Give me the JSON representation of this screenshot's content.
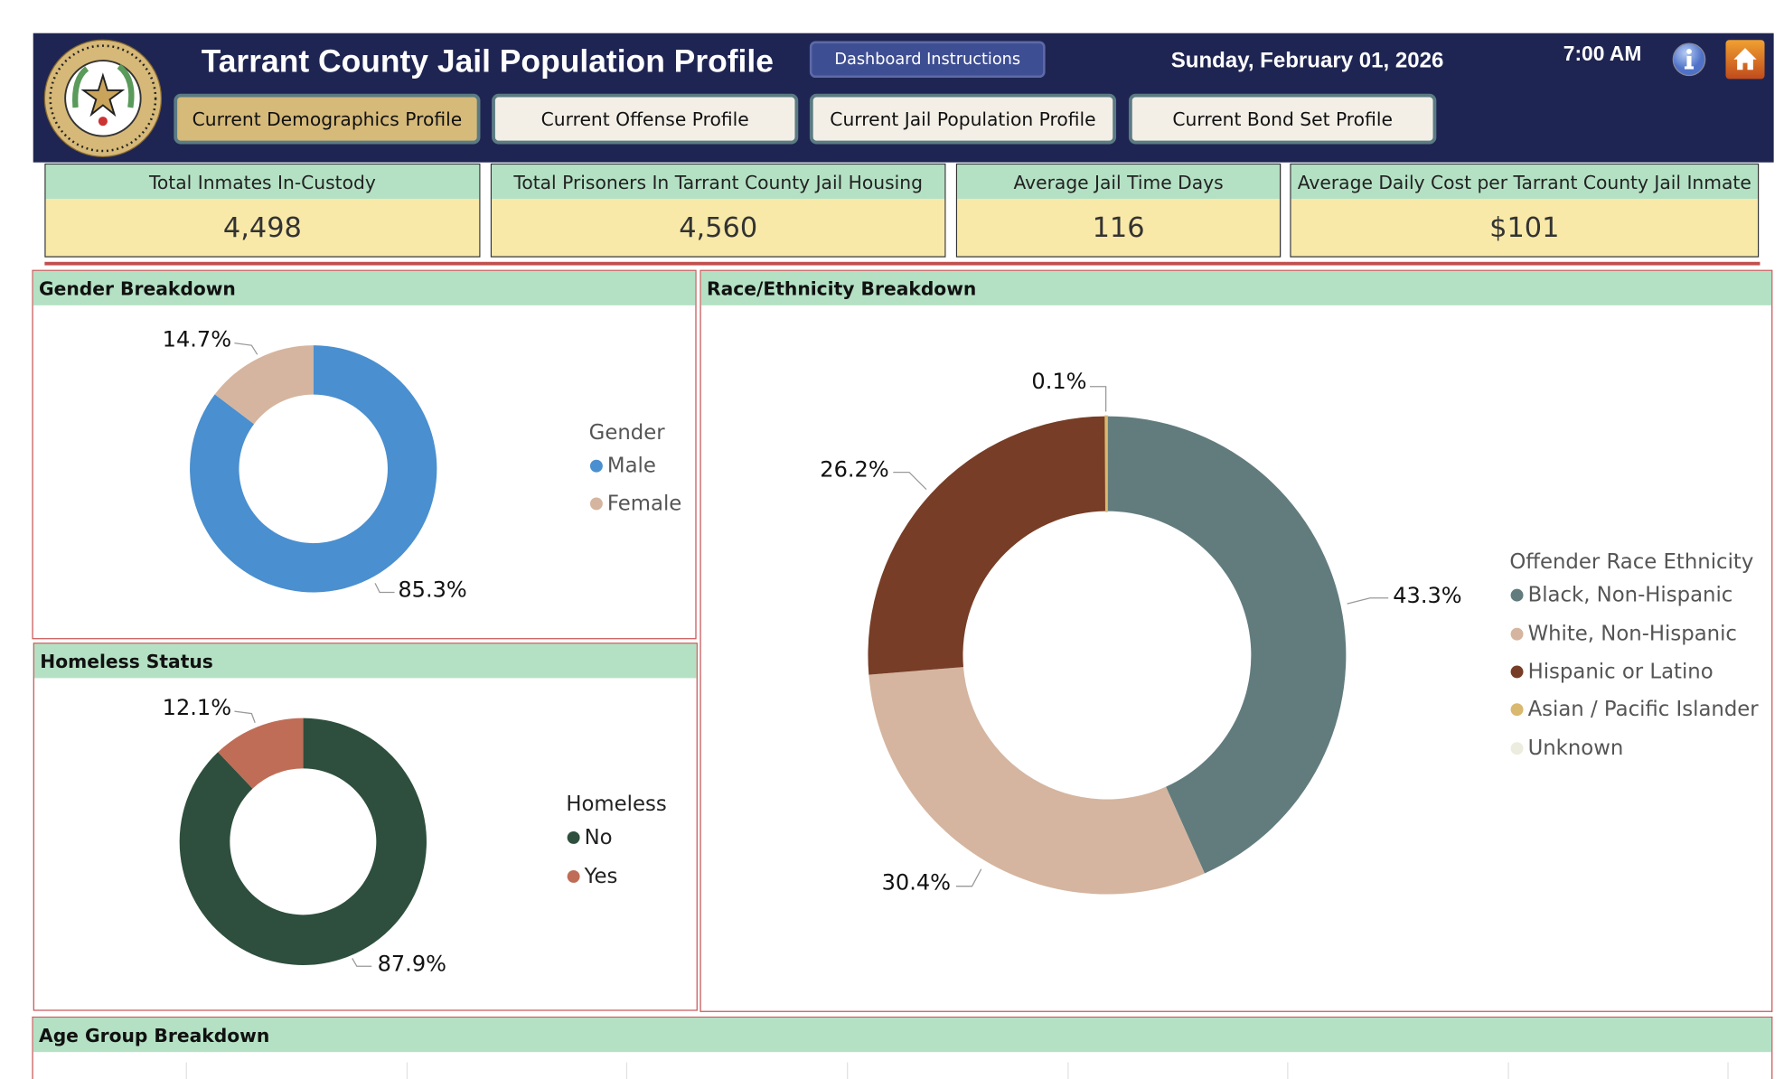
{
  "header": {
    "title": "Tarrant County Jail Population Profile",
    "instructions_button": "Dashboard Instructions",
    "date": "Sunday, February 01, 2026",
    "time": "7:00 AM",
    "seal_text": "TARRANT COUNTY, TEXAS",
    "icons": [
      "info-icon",
      "home-icon"
    ]
  },
  "tabs": [
    {
      "label": "Current Demographics Profile",
      "active": true
    },
    {
      "label": "Current Offense Profile",
      "active": false
    },
    {
      "label": "Current Jail Population Profile",
      "active": false
    },
    {
      "label": "Current Bond Set Profile",
      "active": false
    }
  ],
  "kpis": [
    {
      "label": "Total Inmates In-Custody",
      "value": "4,498"
    },
    {
      "label": "Total Prisoners In Tarrant County Jail Housing",
      "value": "4,560"
    },
    {
      "label": "Average Jail Time Days",
      "value": "116"
    },
    {
      "label": "Average Daily Cost per Tarrant County Jail Inmate",
      "value": "$101"
    }
  ],
  "panels": {
    "gender": "Gender Breakdown",
    "homeless": "Homeless Status",
    "race": "Race/Ethnicity Breakdown",
    "age": "Age Group Breakdown"
  },
  "chart_data": [
    {
      "type": "pie",
      "title": "Gender Breakdown",
      "legend_title": "Gender",
      "legend_position": "right",
      "categories": [
        "Male",
        "Female"
      ],
      "values": [
        85.3,
        14.7
      ],
      "labels": [
        "85.3%",
        "14.7%"
      ],
      "colors": [
        "#4a8fcf",
        "#d5b59f"
      ]
    },
    {
      "type": "pie",
      "title": "Homeless Status",
      "legend_title": "Homeless",
      "legend_position": "right",
      "categories": [
        "No",
        "Yes"
      ],
      "values": [
        87.9,
        12.1
      ],
      "labels": [
        "87.9%",
        "12.1%"
      ],
      "colors": [
        "#2e4f3d",
        "#bf6d57"
      ]
    },
    {
      "type": "pie",
      "title": "Race/Ethnicity Breakdown",
      "legend_title": "Offender Race Ethnicity",
      "legend_position": "right",
      "categories": [
        "Black, Non-Hispanic",
        "White, Non-Hispanic",
        "Hispanic or Latino",
        "Asian / Pacific Islander",
        "Unknown"
      ],
      "values": [
        43.3,
        30.4,
        26.2,
        0.1,
        0.0
      ],
      "labels": [
        "43.3%",
        "30.4%",
        "26.2%",
        "0.1%",
        ""
      ],
      "colors": [
        "#627c7e",
        "#d5b59f",
        "#773d26",
        "#d9b870",
        "#ececdf"
      ]
    }
  ]
}
